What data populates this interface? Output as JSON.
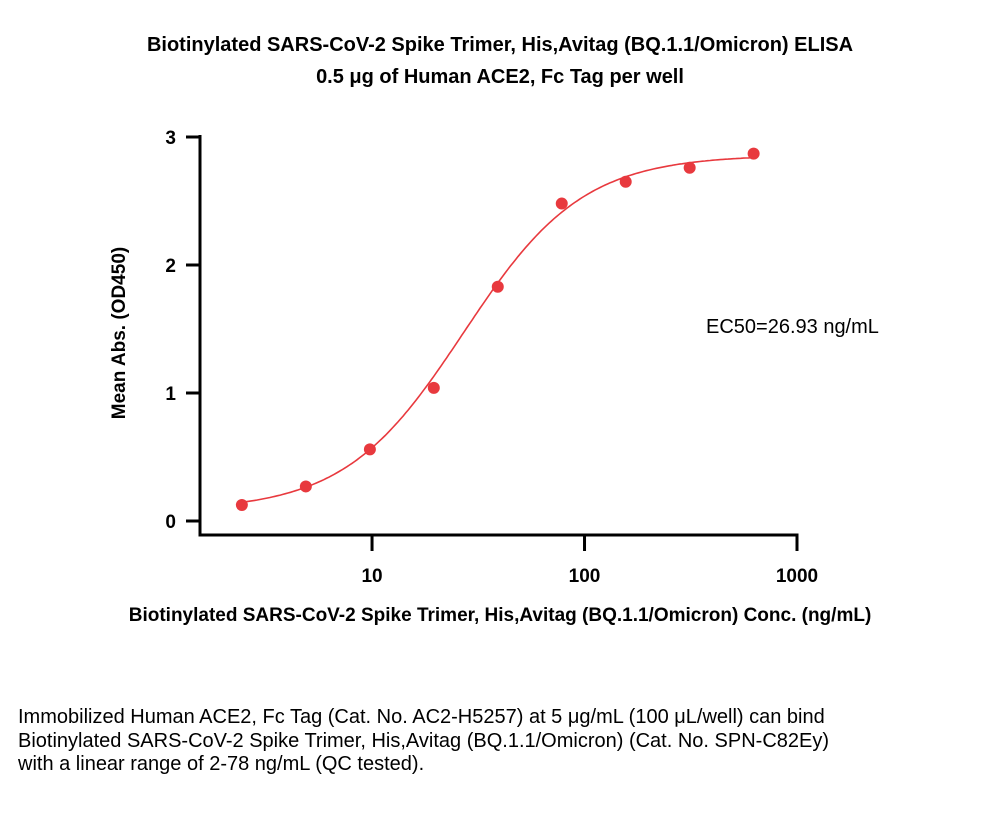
{
  "chart_data": {
    "type": "scatter",
    "title": "Biotinylated SARS-CoV-2 Spike Trimer, His,Avitag (BQ.1.1/Omicron) ELISA",
    "subtitle": "0.5 μg of Human ACE2, Fc Tag per well",
    "xlabel": "Biotinylated SARS-CoV-2 Spike Trimer, His,Avitag (BQ.1.1/Omicron) Conc. (ng/mL)",
    "ylabel": "Mean Abs. (OD450)",
    "x_scale": "log",
    "xlim": [
      1.55,
      1000
    ],
    "ylim": [
      0,
      3
    ],
    "x_ticks": [
      "10",
      "100",
      "1000"
    ],
    "y_ticks": [
      "0",
      "1",
      "2",
      "3"
    ],
    "grid": false,
    "marker_color": "#e8393e",
    "curve_color": "#e8393e",
    "fit": "4-parameter logistic curve",
    "x": [
      2.44,
      4.88,
      9.77,
      19.53,
      39.06,
      78.13,
      156.25,
      312.5,
      625
    ],
    "y": [
      0.125,
      0.27,
      0.56,
      1.04,
      1.83,
      2.48,
      2.65,
      2.76,
      2.87
    ],
    "annotation": "EC50=26.93 ng/mL"
  },
  "caption": "Immobilized Human ACE2, Fc Tag (Cat. No. AC2-H5257) at 5 μg/mL (100 μL/well) can bind Biotinylated SARS-CoV-2 Spike Trimer, His,Avitag (BQ.1.1/Omicron) (Cat. No. SPN-C82Ey) with a linear range of 2-78 ng/mL (QC tested)."
}
